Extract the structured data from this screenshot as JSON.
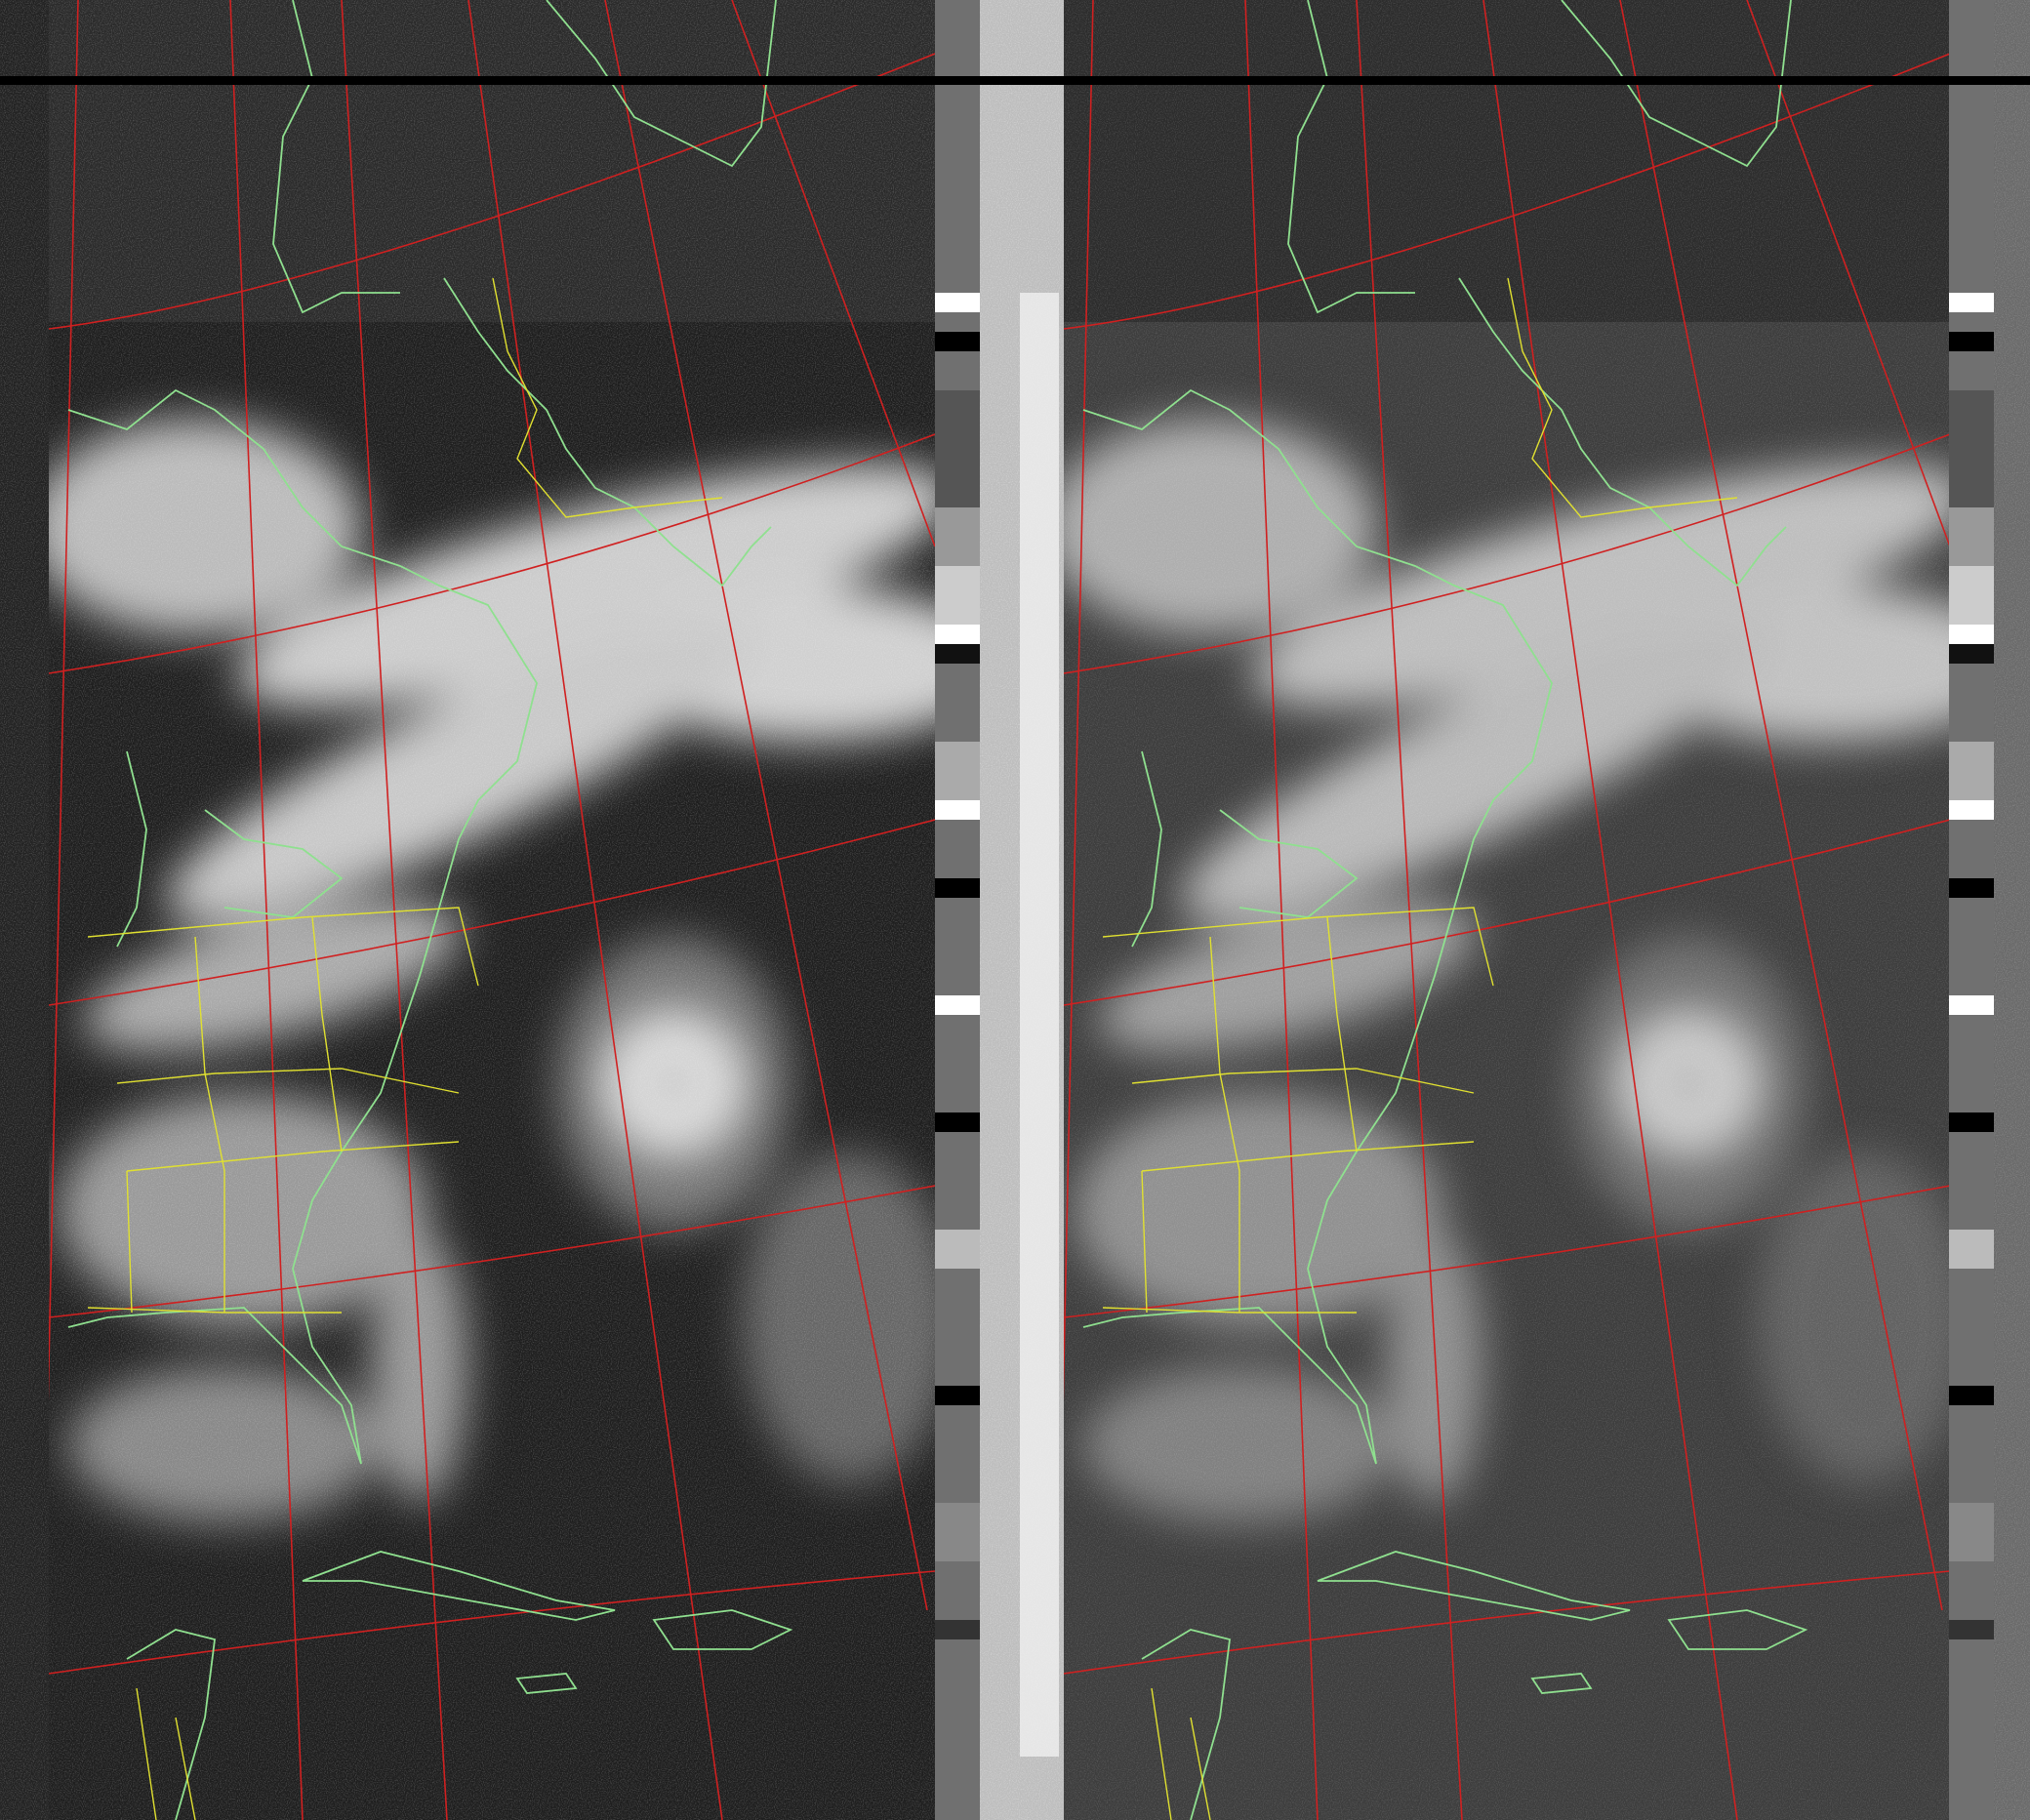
{
  "image": {
    "kind": "satellite-apt-weather-image",
    "channels": [
      "channel-a-visible",
      "channel-b-infrared"
    ],
    "overlays": [
      "coastlines",
      "state-borders",
      "lat-lon-grid"
    ]
  },
  "colors": {
    "coastline": "#8fe08f",
    "border": "#e0e030",
    "graticule": "#d02020",
    "sync_stripe": "#000000"
  }
}
